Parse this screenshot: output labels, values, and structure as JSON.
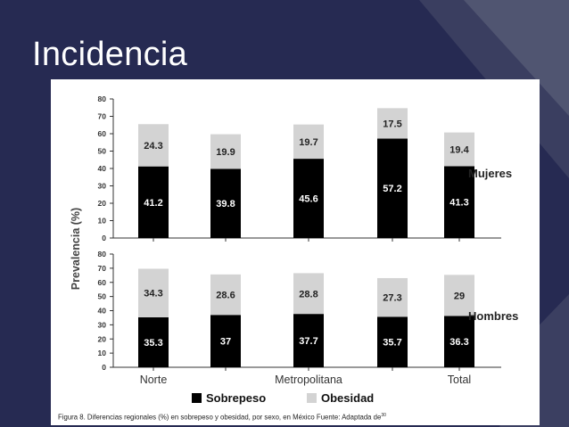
{
  "slide": {
    "title": "Incidencia"
  },
  "colors": {
    "background": "#262a52",
    "sobrepeso": "#000000",
    "obesidad": "#d3d3d3"
  },
  "chart_data": [
    {
      "type": "bar",
      "stacked": true,
      "panel_label": "Mujeres",
      "categories": [
        "Norte",
        "",
        "Metropolitana",
        "",
        "Total"
      ],
      "series": [
        {
          "name": "Sobrepeso",
          "values": [
            41.2,
            39.8,
            45.6,
            57.2,
            41.3
          ]
        },
        {
          "name": "Obesidad",
          "values": [
            24.3,
            19.9,
            19.7,
            17.5,
            19.4
          ]
        }
      ],
      "ylabel": "Prevalencia  (%)",
      "ylim": [
        0,
        80
      ],
      "yticks": [
        0,
        10,
        20,
        30,
        40,
        50,
        60,
        70,
        80
      ],
      "grid": false
    },
    {
      "type": "bar",
      "stacked": true,
      "panel_label": "Hombres",
      "categories": [
        "Norte",
        "",
        "Metropolitana",
        "",
        "Total"
      ],
      "series": [
        {
          "name": "Sobrepeso",
          "values": [
            35.3,
            37,
            37.7,
            35.7,
            36.3
          ]
        },
        {
          "name": "Obesidad",
          "values": [
            34.3,
            28.6,
            28.8,
            27.3,
            29
          ]
        }
      ],
      "ylabel": "Prevalencia  (%)",
      "ylim": [
        0,
        80
      ],
      "yticks": [
        0,
        10,
        20,
        30,
        40,
        50,
        60,
        70,
        80
      ],
      "grid": false
    }
  ],
  "legend": {
    "placement": "bottom",
    "items": [
      "Sobrepeso",
      "Obesidad"
    ]
  },
  "caption": {
    "text": "Figura 8. Diferencias regionales (%) en sobrepeso y obesidad, por sexo, en México Fuente: Adaptada de",
    "sup": "30"
  }
}
